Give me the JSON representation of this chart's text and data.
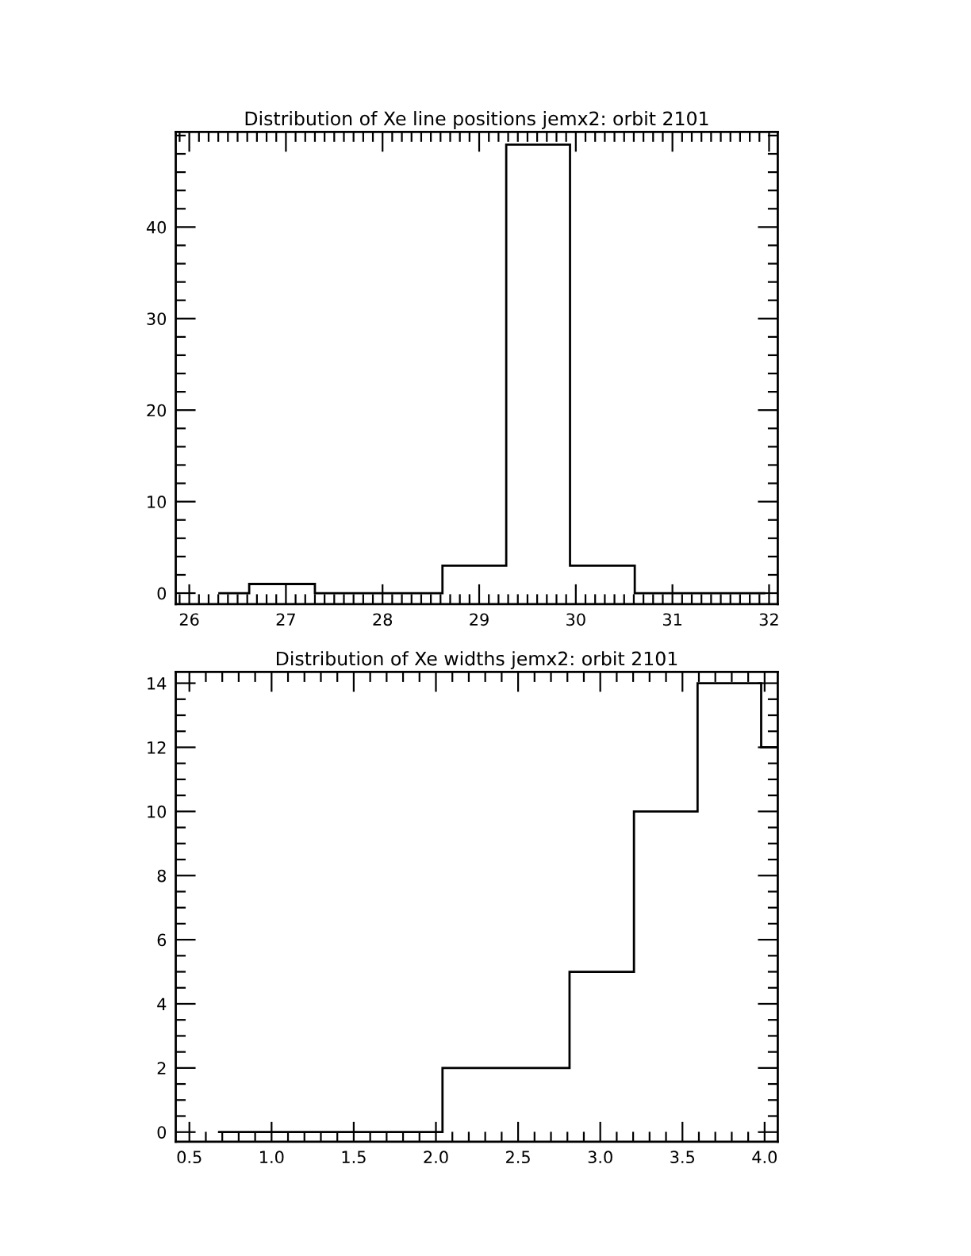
{
  "chart_data": [
    {
      "type": "histogram",
      "title": "Distribution of Xe line positions jemx2: orbit 2101",
      "bins": [
        26.3,
        26.62,
        27.3,
        28.62,
        29.28,
        29.94,
        30.61,
        31.96
      ],
      "values": [
        0,
        1,
        0,
        3,
        49,
        3,
        0
      ],
      "color": "#000000",
      "xlim": [
        25.86,
        32.09
      ],
      "ylim": [
        -1.2,
        50.4
      ],
      "xticks": [
        26,
        27,
        28,
        29,
        30,
        31,
        32
      ],
      "yticks": [
        0,
        10,
        20,
        30,
        40
      ]
    },
    {
      "type": "histogram",
      "title": "Distribution of Xe widths jemx2: orbit 2101",
      "bins": [
        0.674,
        2.04,
        2.813,
        3.205,
        3.592,
        3.979,
        4.08
      ],
      "values": [
        0,
        2,
        5,
        10,
        14,
        12
      ],
      "color": "#000000",
      "xlim": [
        0.417,
        4.08
      ],
      "ylim": [
        -0.3,
        14.35
      ],
      "xticks": [
        0.5,
        {
          "value": 1,
          "label": "1.0"
        },
        1.5,
        {
          "value": 2,
          "label": "2.0"
        },
        2.5,
        {
          "value": 3,
          "label": "3.0"
        },
        3.5,
        {
          "value": 4,
          "label": "4.0"
        }
      ],
      "yticks": [
        0,
        2,
        4,
        6,
        8,
        10,
        12,
        14
      ]
    }
  ]
}
